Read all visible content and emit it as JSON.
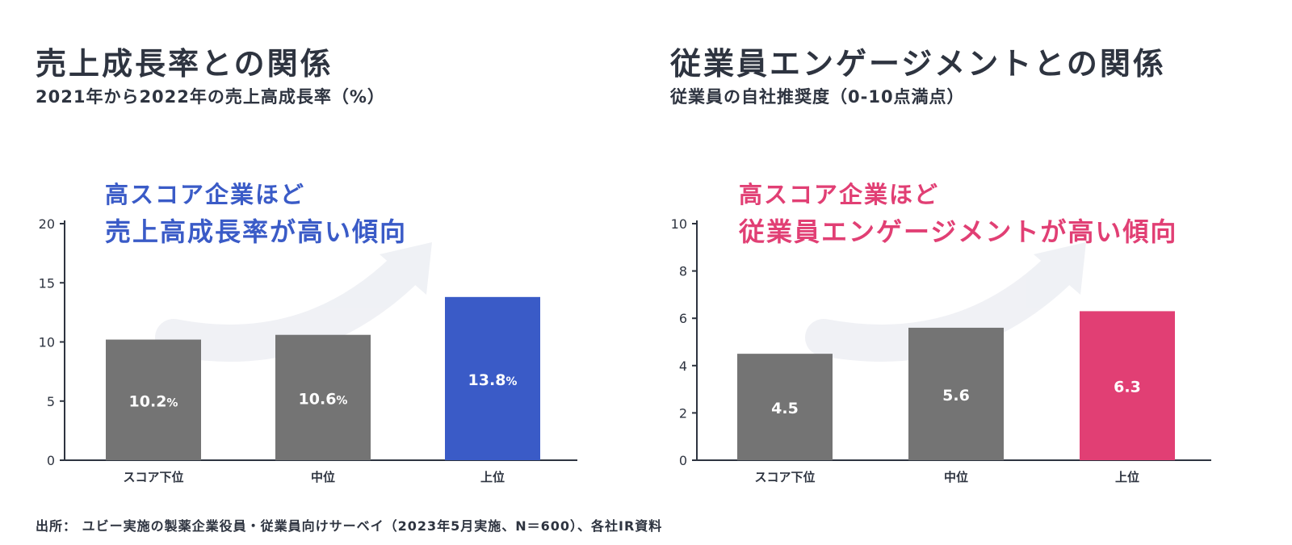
{
  "left": {
    "title": "売上成長率との関係",
    "subtitle": "2021年から2022年の売上高成長率（%）",
    "callout_line1": "高スコア企業ほど",
    "callout_line2": "売上高成長率が高い傾向"
  },
  "right": {
    "title": "従業員エンゲージメントとの関係",
    "subtitle": "従業員の自社推奨度（0-10点満点）",
    "callout_line1": "高スコア企業ほど",
    "callout_line2": "従業員エンゲージメントが高い傾向"
  },
  "source": "出所： ユビー実施の製薬企業役員・従業員向けサーベイ（2023年5月実施、N＝600）、各社IR資料",
  "colors": {
    "gray": "#747474",
    "blue": "#3a5bc7",
    "pink": "#e13f74",
    "axis": "#2e3440"
  },
  "chart_data": [
    {
      "type": "bar",
      "title": "売上成長率との関係",
      "ylabel": "2021年から2022年の売上高成長率（%）",
      "categories": [
        "スコア下位",
        "中位",
        "上位"
      ],
      "values": [
        10.2,
        10.6,
        13.8
      ],
      "labels": [
        "10.2",
        "10.6",
        "13.8"
      ],
      "unit": "%",
      "ylim": [
        0,
        20
      ],
      "yticks": [
        0,
        5,
        10,
        15,
        20
      ],
      "highlight_index": 2,
      "highlight_color": "#3a5bc7"
    },
    {
      "type": "bar",
      "title": "従業員エンゲージメントとの関係",
      "ylabel": "従業員の自社推奨度（0-10点満点）",
      "categories": [
        "スコア下位",
        "中位",
        "上位"
      ],
      "values": [
        4.5,
        5.6,
        6.3
      ],
      "labels": [
        "4.5",
        "5.6",
        "6.3"
      ],
      "unit": "",
      "ylim": [
        0,
        10
      ],
      "yticks": [
        0,
        2,
        4,
        6,
        8,
        10
      ],
      "highlight_index": 2,
      "highlight_color": "#e13f74"
    }
  ]
}
